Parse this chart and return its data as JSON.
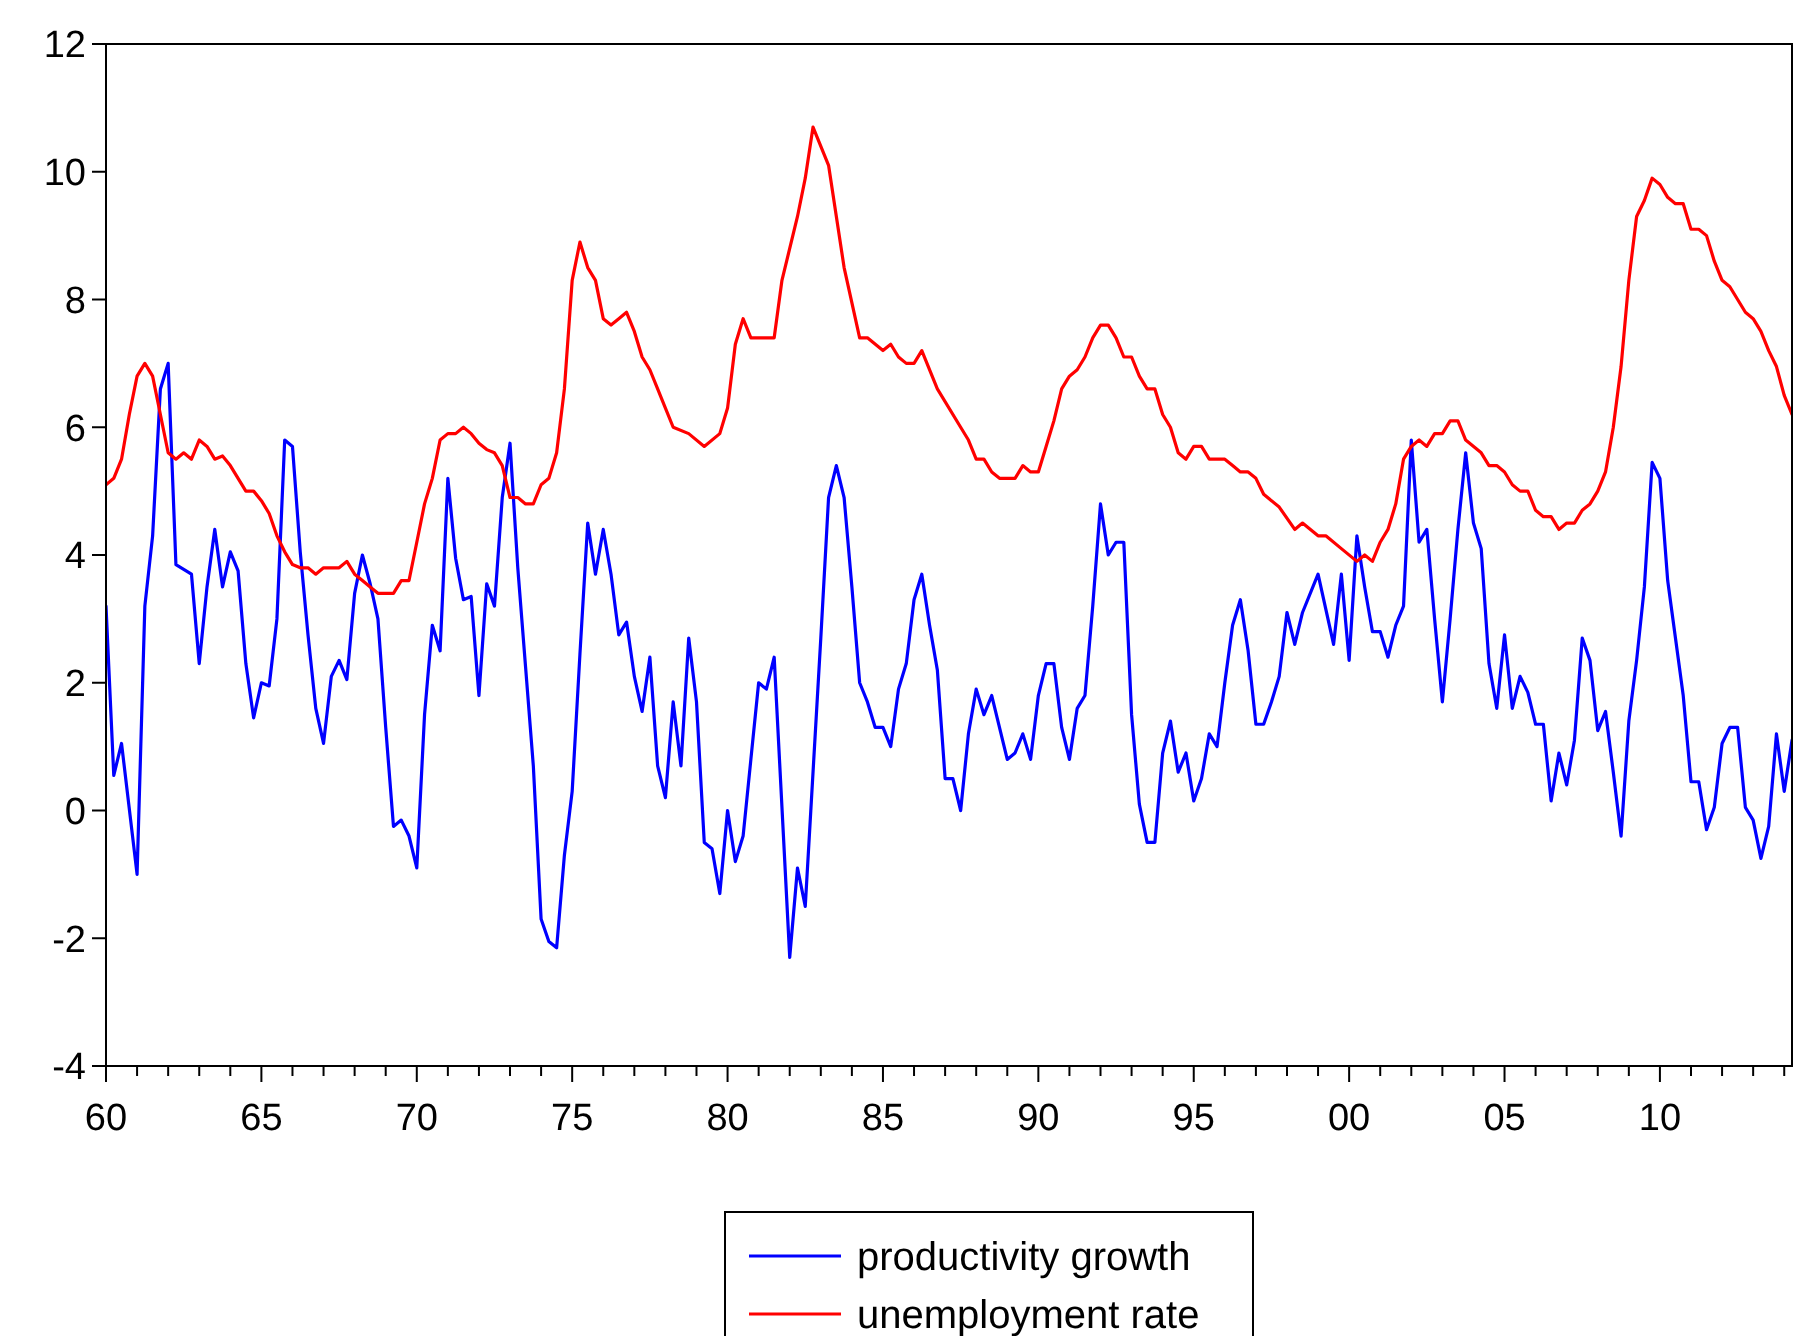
{
  "chart_data": {
    "type": "line",
    "xlim": [
      1960,
      2014.25
    ],
    "ylim": [
      -4,
      12
    ],
    "yticks": [
      -4,
      -2,
      0,
      2,
      4,
      6,
      8,
      10,
      12
    ],
    "xticks": [
      {
        "value": 1960,
        "label": "60"
      },
      {
        "value": 1961,
        "label": null
      },
      {
        "value": 1962,
        "label": null
      },
      {
        "value": 1963,
        "label": null
      },
      {
        "value": 1964,
        "label": null
      },
      {
        "value": 1965,
        "label": "65"
      },
      {
        "value": 1966,
        "label": null
      },
      {
        "value": 1967,
        "label": null
      },
      {
        "value": 1968,
        "label": null
      },
      {
        "value": 1969,
        "label": null
      },
      {
        "value": 1970,
        "label": "70"
      },
      {
        "value": 1971,
        "label": null
      },
      {
        "value": 1972,
        "label": null
      },
      {
        "value": 1973,
        "label": null
      },
      {
        "value": 1974,
        "label": null
      },
      {
        "value": 1975,
        "label": "75"
      },
      {
        "value": 1976,
        "label": null
      },
      {
        "value": 1977,
        "label": null
      },
      {
        "value": 1978,
        "label": null
      },
      {
        "value": 1979,
        "label": null
      },
      {
        "value": 1980,
        "label": "80"
      },
      {
        "value": 1981,
        "label": null
      },
      {
        "value": 1982,
        "label": null
      },
      {
        "value": 1983,
        "label": null
      },
      {
        "value": 1984,
        "label": null
      },
      {
        "value": 1985,
        "label": "85"
      },
      {
        "value": 1986,
        "label": null
      },
      {
        "value": 1987,
        "label": null
      },
      {
        "value": 1988,
        "label": null
      },
      {
        "value": 1989,
        "label": null
      },
      {
        "value": 1990,
        "label": "90"
      },
      {
        "value": 1991,
        "label": null
      },
      {
        "value": 1992,
        "label": null
      },
      {
        "value": 1993,
        "label": null
      },
      {
        "value": 1994,
        "label": null
      },
      {
        "value": 1995,
        "label": "95"
      },
      {
        "value": 1996,
        "label": null
      },
      {
        "value": 1997,
        "label": null
      },
      {
        "value": 1998,
        "label": null
      },
      {
        "value": 1999,
        "label": null
      },
      {
        "value": 2000,
        "label": "00"
      },
      {
        "value": 2001,
        "label": null
      },
      {
        "value": 2002,
        "label": null
      },
      {
        "value": 2003,
        "label": null
      },
      {
        "value": 2004,
        "label": null
      },
      {
        "value": 2005,
        "label": "05"
      },
      {
        "value": 2006,
        "label": null
      },
      {
        "value": 2007,
        "label": null
      },
      {
        "value": 2008,
        "label": null
      },
      {
        "value": 2009,
        "label": null
      },
      {
        "value": 2010,
        "label": "10"
      },
      {
        "value": 2011,
        "label": null
      },
      {
        "value": 2012,
        "label": null
      },
      {
        "value": 2013,
        "label": null
      },
      {
        "value": 2014,
        "label": null
      }
    ],
    "grid": false,
    "legend": "bottom",
    "marker": "none",
    "line_style": "solid",
    "series": [
      {
        "name": "productivity growth",
        "color": "#0000ff",
        "x": [
          1960,
          1960.25,
          1960.5,
          1961,
          1961.25,
          1961.5,
          1961.75,
          1962,
          1962.25,
          1962.75,
          1963,
          1963.25,
          1963.5,
          1963.75,
          1964,
          1964.25,
          1964.5,
          1964.75,
          1965,
          1965.25,
          1965.5,
          1965.75,
          1966,
          1966.25,
          1966.5,
          1966.75,
          1967,
          1967.25,
          1967.5,
          1967.75,
          1968,
          1968.25,
          1968.5,
          1968.75,
          1969,
          1969.25,
          1969.5,
          1969.75,
          1970,
          1970.25,
          1970.5,
          1970.75,
          1971,
          1971.25,
          1971.5,
          1971.75,
          1972,
          1972.25,
          1972.5,
          1972.75,
          1973,
          1973.25,
          1973.5,
          1973.75,
          1974,
          1974.25,
          1974.5,
          1974.75,
          1975,
          1975.25,
          1975.5,
          1975.75,
          1976,
          1976.25,
          1976.5,
          1976.75,
          1977,
          1977.25,
          1977.5,
          1977.75,
          1978,
          1978.25,
          1978.5,
          1978.75,
          1979,
          1979.25,
          1979.5,
          1979.75,
          1980,
          1980.25,
          1980.5,
          1980.75,
          1981,
          1981.25,
          1981.5,
          1982,
          1982.25,
          1982.5,
          1983,
          1983.25,
          1983.5,
          1983.75,
          1984,
          1984.25,
          1984.5,
          1984.75,
          1985,
          1985.25,
          1985.5,
          1985.75,
          1986,
          1986.25,
          1986.5,
          1986.75,
          1987,
          1987.25,
          1987.5,
          1987.75,
          1988,
          1988.25,
          1988.5,
          1989,
          1989.25,
          1989.5,
          1989.75,
          1990,
          1990.25,
          1990.5,
          1990.75,
          1991,
          1991.25,
          1991.5,
          1991.75,
          1992,
          1992.25,
          1992.5,
          1992.75,
          1993,
          1993.25,
          1993.5,
          1993.75,
          1994,
          1994.25,
          1994.5,
          1994.75,
          1995,
          1995.25,
          1995.5,
          1995.75,
          1996,
          1996.25,
          1996.5,
          1996.75,
          1997,
          1997.25,
          1997.5,
          1997.75,
          1998,
          1998.25,
          1998.5,
          1999,
          1999.5,
          1999.75,
          2000,
          2000.25,
          2000.5,
          2000.75,
          2001,
          2001.25,
          2001.5,
          2001.75,
          2002,
          2002.25,
          2002.5,
          2002.75,
          2003,
          2003.25,
          2003.5,
          2003.75,
          2004,
          2004.25,
          2004.5,
          2004.75,
          2005,
          2005.25,
          2005.5,
          2005.75,
          2006,
          2006.25,
          2006.5,
          2006.75,
          2007,
          2007.25,
          2007.5,
          2007.75,
          2008,
          2008.25,
          2008.5,
          2008.75,
          2009,
          2009.25,
          2009.5,
          2009.75,
          2010,
          2010.25,
          2010.5,
          2010.75,
          2011,
          2011.25,
          2011.5,
          2011.75,
          2012,
          2012.25,
          2012.5,
          2012.75,
          2013,
          2013.25,
          2013.5,
          2013.75,
          2014,
          2014.25
        ],
        "values": [
          3.2,
          0.55,
          1.05,
          -1.0,
          3.2,
          4.3,
          6.6,
          7.0,
          3.85,
          3.7,
          2.3,
          3.5,
          4.4,
          3.5,
          4.05,
          3.75,
          2.3,
          1.45,
          2.0,
          1.95,
          3.0,
          5.8,
          5.7,
          4.05,
          2.75,
          1.6,
          1.05,
          2.1,
          2.35,
          2.05,
          3.4,
          4.0,
          3.55,
          3.0,
          1.3,
          -0.25,
          -0.15,
          -0.4,
          -0.9,
          1.5,
          2.9,
          2.5,
          5.2,
          3.95,
          3.3,
          3.35,
          1.8,
          3.55,
          3.2,
          4.9,
          5.75,
          3.8,
          2.25,
          0.7,
          -1.7,
          -2.05,
          -2.15,
          -0.7,
          0.3,
          2.45,
          4.5,
          3.7,
          4.4,
          3.7,
          2.75,
          2.95,
          2.1,
          1.55,
          2.4,
          0.7,
          0.2,
          1.7,
          0.7,
          2.7,
          1.7,
          -0.5,
          -0.6,
          -1.3,
          0.0,
          -0.8,
          -0.4,
          0.8,
          2.0,
          1.9,
          2.4,
          -2.3,
          -0.9,
          -1.5,
          2.7,
          4.9,
          5.4,
          4.9,
          3.5,
          2.0,
          1.7,
          1.3,
          1.3,
          1.0,
          1.9,
          2.3,
          3.3,
          3.7,
          2.9,
          2.2,
          0.5,
          0.5,
          0.0,
          1.2,
          1.9,
          1.5,
          1.8,
          0.8,
          0.9,
          1.2,
          0.8,
          1.8,
          2.3,
          2.3,
          1.3,
          0.8,
          1.6,
          1.8,
          3.2,
          4.8,
          4.0,
          4.2,
          4.2,
          1.5,
          0.1,
          -0.5,
          -0.5,
          0.9,
          1.4,
          0.6,
          0.9,
          0.15,
          0.5,
          1.2,
          1.0,
          2.0,
          2.9,
          3.3,
          2.5,
          1.35,
          1.35,
          1.7,
          2.1,
          3.1,
          2.6,
          3.1,
          3.7,
          2.6,
          3.7,
          2.35,
          4.3,
          3.5,
          2.8,
          2.8,
          2.4,
          2.9,
          3.2,
          5.8,
          4.2,
          4.4,
          3.0,
          1.7,
          3.0,
          4.4,
          5.6,
          4.5,
          4.1,
          2.3,
          1.6,
          2.75,
          1.6,
          2.1,
          1.85,
          1.35,
          1.35,
          0.15,
          0.9,
          0.4,
          1.1,
          2.7,
          2.35,
          1.25,
          1.55,
          0.6,
          -0.4,
          1.4,
          2.35,
          3.5,
          5.45,
          5.2,
          3.6,
          2.7,
          1.8,
          0.45,
          0.45,
          -0.3,
          0.05,
          1.05,
          1.3,
          1.3,
          0.05,
          -0.15,
          -0.75,
          -0.25,
          1.2,
          0.3,
          1.1
        ]
      },
      {
        "name": "unemployment rate",
        "color": "#ff0000",
        "x": [
          1960,
          1960.25,
          1960.5,
          1960.75,
          1961,
          1961.25,
          1961.5,
          1961.75,
          1962,
          1962.25,
          1962.5,
          1962.75,
          1963,
          1963.25,
          1963.5,
          1963.75,
          1964,
          1964.25,
          1964.5,
          1964.75,
          1965,
          1965.25,
          1965.5,
          1965.75,
          1966,
          1966.25,
          1966.5,
          1966.75,
          1967,
          1967.5,
          1967.75,
          1968,
          1968.25,
          1968.5,
          1968.75,
          1969.25,
          1969.5,
          1969.75,
          1970,
          1970.25,
          1970.5,
          1970.75,
          1971,
          1971.25,
          1971.5,
          1971.75,
          1972,
          1972.25,
          1972.5,
          1972.75,
          1973,
          1973.25,
          1973.5,
          1973.75,
          1974,
          1974.25,
          1974.5,
          1974.75,
          1975,
          1975.25,
          1975.5,
          1975.75,
          1976,
          1976.25,
          1976.5,
          1976.75,
          1977,
          1977.25,
          1977.5,
          1977.75,
          1978,
          1978.25,
          1978.75,
          1979.25,
          1979.75,
          1980,
          1980.25,
          1980.5,
          1980.75,
          1981.5,
          1981.75,
          1982.25,
          1982.5,
          1982.75,
          1983.25,
          1983.5,
          1983.75,
          1984.25,
          1984.5,
          1985,
          1985.25,
          1985.5,
          1985.75,
          1986,
          1986.25,
          1986.75,
          1987.5,
          1987.75,
          1988,
          1988.25,
          1988.5,
          1988.75,
          1989.25,
          1989.5,
          1989.75,
          1990,
          1990.25,
          1990.5,
          1990.75,
          1991,
          1991.25,
          1991.5,
          1991.75,
          1992,
          1992.25,
          1992.5,
          1992.75,
          1993,
          1993.25,
          1993.5,
          1993.75,
          1994,
          1994.25,
          1994.5,
          1994.75,
          1995,
          1995.25,
          1995.5,
          1995.75,
          1996,
          1996.25,
          1996.5,
          1996.75,
          1997,
          1997.25,
          1997.75,
          1998.25,
          1998.5,
          1999,
          1999.25,
          1999.75,
          2000.25,
          2000.5,
          2000.75,
          2001,
          2001.25,
          2001.5,
          2001.75,
          2002,
          2002.25,
          2002.5,
          2002.75,
          2003,
          2003.25,
          2003.5,
          2003.75,
          2004.25,
          2004.5,
          2004.75,
          2005,
          2005.25,
          2005.5,
          2005.75,
          2006,
          2006.25,
          2006.5,
          2006.75,
          2007,
          2007.25,
          2007.5,
          2007.75,
          2008,
          2008.25,
          2008.5,
          2008.75,
          2009,
          2009.25,
          2009.5,
          2009.75,
          2010,
          2010.25,
          2010.5,
          2010.75,
          2011,
          2011.25,
          2011.5,
          2011.75,
          2012,
          2012.25,
          2012.5,
          2012.75,
          2013,
          2013.25,
          2013.5,
          2013.75,
          2014,
          2014.25
        ],
        "values": [
          5.1,
          5.2,
          5.5,
          6.2,
          6.8,
          7.0,
          6.8,
          6.2,
          5.6,
          5.5,
          5.6,
          5.5,
          5.8,
          5.7,
          5.5,
          5.55,
          5.4,
          5.2,
          5.0,
          5.0,
          4.85,
          4.65,
          4.3,
          4.05,
          3.85,
          3.8,
          3.8,
          3.7,
          3.8,
          3.8,
          3.9,
          3.7,
          3.6,
          3.5,
          3.4,
          3.4,
          3.6,
          3.6,
          4.2,
          4.8,
          5.2,
          5.8,
          5.9,
          5.9,
          6.0,
          5.9,
          5.75,
          5.65,
          5.6,
          5.4,
          4.9,
          4.9,
          4.8,
          4.8,
          5.1,
          5.2,
          5.6,
          6.6,
          8.3,
          8.9,
          8.5,
          8.3,
          7.7,
          7.6,
          7.7,
          7.8,
          7.5,
          7.1,
          6.9,
          6.6,
          6.3,
          6.0,
          5.9,
          5.7,
          5.9,
          6.3,
          7.3,
          7.7,
          7.4,
          7.4,
          8.3,
          9.3,
          9.9,
          10.7,
          10.1,
          9.3,
          8.5,
          7.4,
          7.4,
          7.2,
          7.3,
          7.1,
          7.0,
          7.0,
          7.2,
          6.6,
          6.0,
          5.8,
          5.5,
          5.5,
          5.3,
          5.2,
          5.2,
          5.4,
          5.3,
          5.3,
          5.7,
          6.1,
          6.6,
          6.8,
          6.9,
          7.1,
          7.4,
          7.6,
          7.6,
          7.4,
          7.1,
          7.1,
          6.8,
          6.6,
          6.6,
          6.2,
          6.0,
          5.6,
          5.5,
          5.7,
          5.7,
          5.5,
          5.5,
          5.5,
          5.4,
          5.3,
          5.3,
          5.2,
          4.95,
          4.75,
          4.4,
          4.5,
          4.3,
          4.3,
          4.1,
          3.9,
          4.0,
          3.9,
          4.2,
          4.4,
          4.8,
          5.5,
          5.7,
          5.8,
          5.7,
          5.9,
          5.9,
          6.1,
          6.1,
          5.8,
          5.6,
          5.4,
          5.4,
          5.3,
          5.1,
          5.0,
          5.0,
          4.7,
          4.6,
          4.6,
          4.4,
          4.5,
          4.5,
          4.7,
          4.8,
          5.0,
          5.3,
          6.0,
          6.95,
          8.3,
          9.3,
          9.55,
          9.9,
          9.8,
          9.6,
          9.5,
          9.5,
          9.1,
          9.1,
          9.0,
          8.6,
          8.3,
          8.2,
          8.0,
          7.8,
          7.7,
          7.5,
          7.2,
          6.95,
          6.5,
          6.2
        ]
      }
    ]
  }
}
